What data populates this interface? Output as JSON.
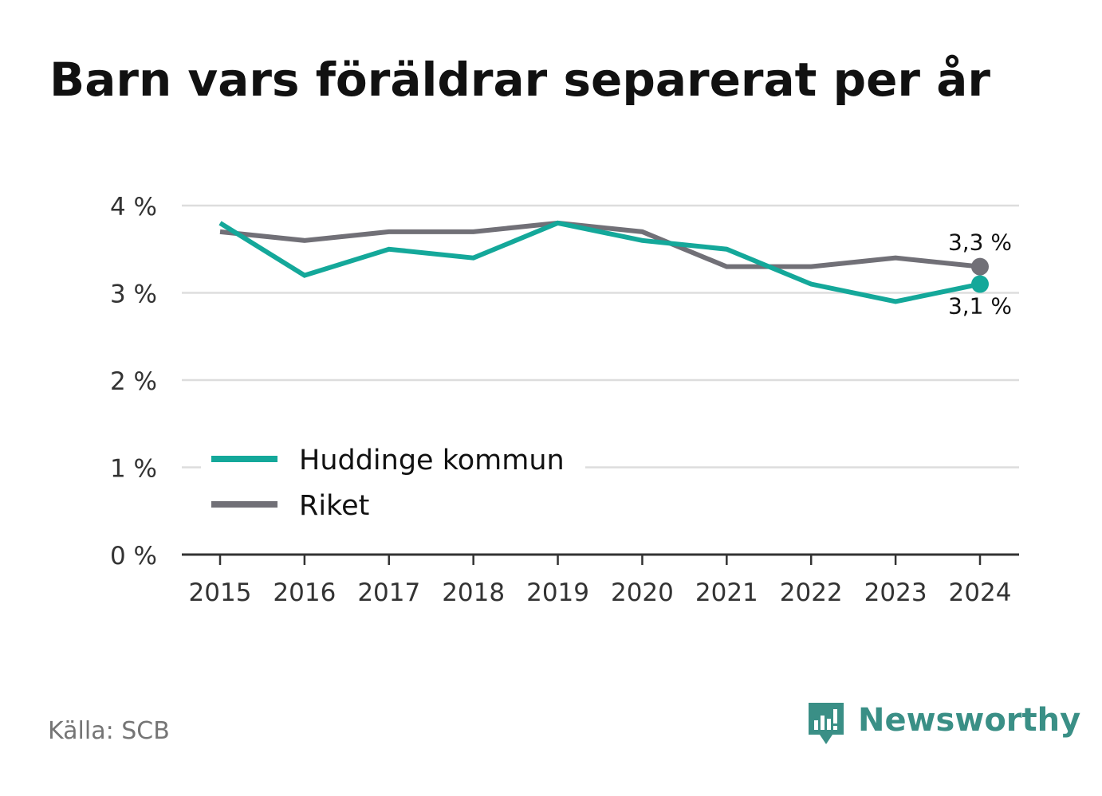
{
  "title": "Barn vars föräldrar separerat per år",
  "source": "Källa: SCB",
  "brand": {
    "name": "Newsworthy",
    "icon": "newsworthy-chart-bubble-icon",
    "color": "#3a8f86"
  },
  "colors": {
    "huddinge": "#14a89a",
    "riket": "#717077",
    "grid": "#dddddd",
    "axis": "#333333",
    "tick_label": "#333333"
  },
  "chart_data": {
    "type": "line",
    "title": "Barn vars föräldrar separerat per år",
    "x": [
      "2015",
      "2016",
      "2017",
      "2018",
      "2019",
      "2020",
      "2021",
      "2022",
      "2023",
      "2024"
    ],
    "ylim": [
      0,
      4
    ],
    "yticks": [
      0,
      1,
      2,
      3,
      4
    ],
    "ytick_labels": [
      "0 %",
      "1 %",
      "2 %",
      "3 %",
      "4 %"
    ],
    "grid": true,
    "legend_position": "bottom-left",
    "series": [
      {
        "name": "Huddinge kommun",
        "color": "#14a89a",
        "values": [
          3.8,
          3.2,
          3.5,
          3.4,
          3.8,
          3.6,
          3.5,
          3.1,
          2.9,
          3.1
        ],
        "end_label": "3,1 %"
      },
      {
        "name": "Riket",
        "color": "#717077",
        "values": [
          3.7,
          3.6,
          3.7,
          3.7,
          3.8,
          3.7,
          3.3,
          3.3,
          3.4,
          3.3
        ],
        "end_label": "3,3 %"
      }
    ]
  }
}
